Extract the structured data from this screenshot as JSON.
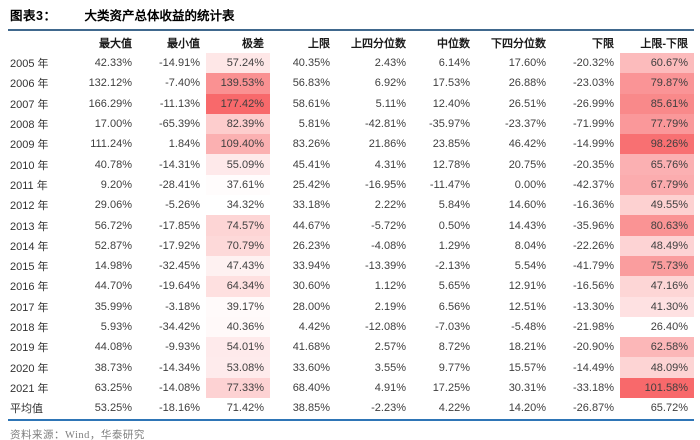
{
  "title": {
    "figure_label": "图表3：",
    "text": "大类资产总体收益的统计表"
  },
  "source_note": "资料来源：Wind，华泰研究",
  "colors": {
    "heat_min": "#FFFFFF",
    "heat_max": "#F8696B",
    "title_rule": "#1F4E79",
    "footer_rule": "#2E75B6",
    "text": "#3F3F3F",
    "header_text": "#1A1A1A",
    "source_text": "#7F7F7F"
  },
  "chart_data": {
    "type": "table",
    "title": "大类资产总体收益的统计表",
    "figure_label": "图表3：",
    "row_header": "",
    "columns": [
      "最大值",
      "最小值",
      "极差",
      "上限",
      "上四分位数",
      "中位数",
      "下四分位数",
      "下限",
      "上限-下限"
    ],
    "value_format": "percent_2dp",
    "heatmap": {
      "column_indexes": [
        2,
        8
      ],
      "min_color": "#FFFFFF",
      "max_color": "#F8696B",
      "applies_to": "year_rows_only"
    },
    "rows": [
      {
        "label": "2005 年",
        "values": [
          42.33,
          -14.91,
          57.24,
          40.35,
          2.43,
          6.14,
          17.6,
          -20.32,
          60.67
        ]
      },
      {
        "label": "2006 年",
        "values": [
          132.12,
          -7.4,
          139.53,
          56.83,
          6.92,
          17.53,
          26.88,
          -23.03,
          79.87
        ]
      },
      {
        "label": "2007 年",
        "values": [
          166.29,
          -11.13,
          177.42,
          58.61,
          5.11,
          12.4,
          26.51,
          -26.99,
          85.61
        ]
      },
      {
        "label": "2008 年",
        "values": [
          17.0,
          -65.39,
          82.39,
          5.81,
          -42.81,
          -35.97,
          -23.37,
          -71.99,
          77.79
        ]
      },
      {
        "label": "2009 年",
        "values": [
          111.24,
          1.84,
          109.4,
          83.26,
          21.86,
          23.85,
          46.42,
          -14.99,
          98.26
        ]
      },
      {
        "label": "2010 年",
        "values": [
          40.78,
          -14.31,
          55.09,
          45.41,
          4.31,
          12.78,
          20.75,
          -20.35,
          65.76
        ]
      },
      {
        "label": "2011 年",
        "values": [
          9.2,
          -28.41,
          37.61,
          25.42,
          -16.95,
          -11.47,
          0.0,
          -42.37,
          67.79
        ]
      },
      {
        "label": "2012 年",
        "values": [
          29.06,
          -5.26,
          34.32,
          33.18,
          2.22,
          5.84,
          14.6,
          -16.36,
          49.55
        ]
      },
      {
        "label": "2013 年",
        "values": [
          56.72,
          -17.85,
          74.57,
          44.67,
          -5.72,
          0.5,
          14.43,
          -35.96,
          80.63
        ]
      },
      {
        "label": "2014 年",
        "values": [
          52.87,
          -17.92,
          70.79,
          26.23,
          -4.08,
          1.29,
          8.04,
          -22.26,
          48.49
        ]
      },
      {
        "label": "2015 年",
        "values": [
          14.98,
          -32.45,
          47.43,
          33.94,
          -13.39,
          -2.13,
          5.54,
          -41.79,
          75.73
        ]
      },
      {
        "label": "2016 年",
        "values": [
          44.7,
          -19.64,
          64.34,
          30.6,
          1.12,
          5.65,
          12.91,
          -16.56,
          47.16
        ]
      },
      {
        "label": "2017 年",
        "values": [
          35.99,
          -3.18,
          39.17,
          28.0,
          2.19,
          6.56,
          12.51,
          -13.3,
          41.3
        ]
      },
      {
        "label": "2018 年",
        "values": [
          5.93,
          -34.42,
          40.36,
          4.42,
          -12.08,
          -7.03,
          -5.48,
          -21.98,
          26.4
        ]
      },
      {
        "label": "2019 年",
        "values": [
          44.08,
          -9.93,
          54.01,
          41.68,
          2.57,
          8.72,
          18.21,
          -20.9,
          62.58
        ]
      },
      {
        "label": "2020 年",
        "values": [
          38.73,
          -14.34,
          53.08,
          33.6,
          3.55,
          9.77,
          15.57,
          -14.49,
          48.09
        ]
      },
      {
        "label": "2021 年",
        "values": [
          63.25,
          -14.08,
          77.33,
          68.4,
          4.91,
          17.25,
          30.31,
          -33.18,
          101.58
        ]
      }
    ],
    "average_row": {
      "label": "平均值",
      "values": [
        53.25,
        -18.16,
        71.42,
        38.85,
        -2.23,
        4.22,
        14.2,
        -26.87,
        65.72
      ]
    }
  }
}
